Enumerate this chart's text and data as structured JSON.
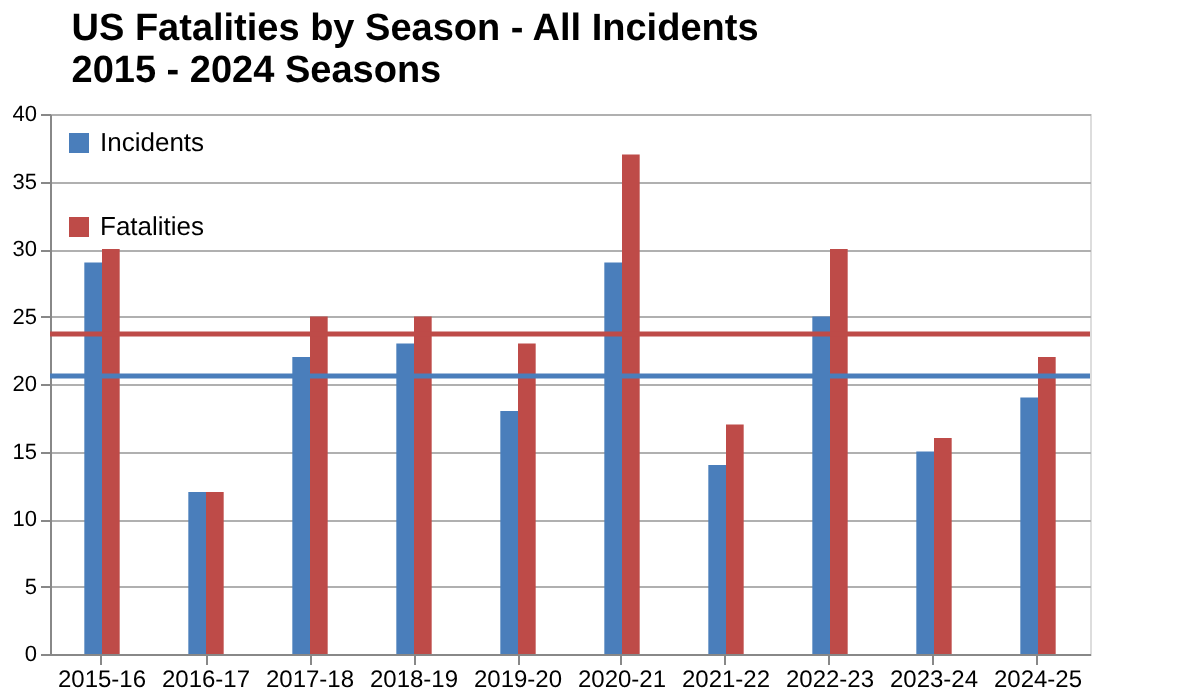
{
  "chart_data": {
    "type": "bar",
    "title": [
      "US Fatalities by Season - All Incidents",
      "2015 - 2024 Seasons"
    ],
    "categories": [
      "2015-16",
      "2016-17",
      "2017-18",
      "2018-19",
      "2019-20",
      "2020-21",
      "2021-22",
      "2022-23",
      "2023-24",
      "2024-25"
    ],
    "series": [
      {
        "name": "Incidents",
        "color": "#4a7ebb",
        "values": [
          29,
          12,
          22,
          23,
          18,
          29,
          14,
          25,
          15,
          19
        ]
      },
      {
        "name": "Fatalities",
        "color": "#be4b48",
        "values": [
          30,
          12,
          25,
          25,
          23,
          37,
          17,
          30,
          16,
          22
        ]
      }
    ],
    "ref_lines": [
      {
        "axis": "y",
        "value": 20.6,
        "label": null,
        "color": "#4a7ebb"
      },
      {
        "axis": "y",
        "value": 23.7,
        "label": null,
        "color": "#be4b48"
      }
    ],
    "ylim": [
      0,
      40
    ],
    "yticks": [
      0,
      5,
      10,
      15,
      20,
      25,
      30,
      35,
      40
    ],
    "grid": "y",
    "legend": "top left"
  }
}
